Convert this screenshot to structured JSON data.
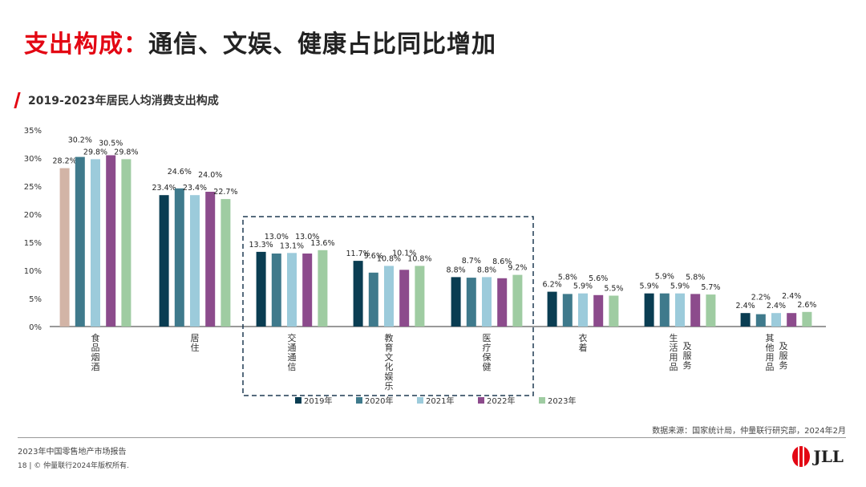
{
  "header": {
    "title_red": "支出构成：",
    "title_dark": "通信、文娱、健康占比同比增加",
    "subtitle": "2019-2023年居民人均消费支出构成"
  },
  "colors": {
    "accent": "#e30613",
    "box": "#1f3a52",
    "series": [
      "#d2b4a6",
      "#0a3d52",
      "#3f7a8c",
      "#9ccbdb",
      "#8c4b8c",
      "#9fcca2"
    ]
  },
  "chart_data": {
    "type": "bar",
    "title": "2019-2023年居民人均消费支出构成",
    "categories": [
      "食品烟酒",
      "居住",
      "交通通信",
      "教育文化娱乐",
      "医疗保健",
      "衣着",
      "生活用品及服务",
      "其他用品及服务"
    ],
    "category_labels": [
      [
        "食品烟酒"
      ],
      [
        "居住"
      ],
      [
        "交通通信"
      ],
      [
        "教育文化娱乐"
      ],
      [
        "医疗保健"
      ],
      [
        "衣着"
      ],
      [
        "生活用品",
        "及服务"
      ],
      [
        "其他用品",
        "及服务"
      ]
    ],
    "series": [
      {
        "name": "2019年",
        "values": [
          28.2,
          23.4,
          13.3,
          11.7,
          8.8,
          6.2,
          5.9,
          2.4
        ]
      },
      {
        "name": "2020年",
        "values": [
          30.2,
          24.6,
          13.0,
          9.6,
          8.7,
          5.8,
          5.9,
          2.2
        ]
      },
      {
        "name": "2021年",
        "values": [
          29.8,
          23.4,
          13.1,
          10.8,
          8.8,
          5.9,
          5.9,
          2.4
        ]
      },
      {
        "name": "2022年",
        "values": [
          30.5,
          24.0,
          13.0,
          10.1,
          8.6,
          5.6,
          5.8,
          2.4
        ]
      },
      {
        "name": "2023年",
        "values": [
          29.8,
          22.7,
          13.6,
          10.8,
          9.2,
          5.5,
          5.7,
          2.6
        ]
      }
    ],
    "y_ticks": [
      "0%",
      "5%",
      "10%",
      "15%",
      "20%",
      "25%",
      "30%",
      "35%"
    ],
    "ylim": [
      0,
      35
    ],
    "highlighted_categories": [
      "交通通信",
      "教育文化娱乐",
      "医疗保健"
    ],
    "legend": [
      "2019年",
      "2020年",
      "2021年",
      "2022年",
      "2023年"
    ],
    "legend_position": "bottom"
  },
  "footer": {
    "source": "数据来源：国家统计局，仲量联行研究部，2024年2月",
    "report": "2023年中国零售地产市场报告",
    "copyright": "18 | © 仲量联行2024年版权所有.",
    "logo_text": "JLL"
  }
}
